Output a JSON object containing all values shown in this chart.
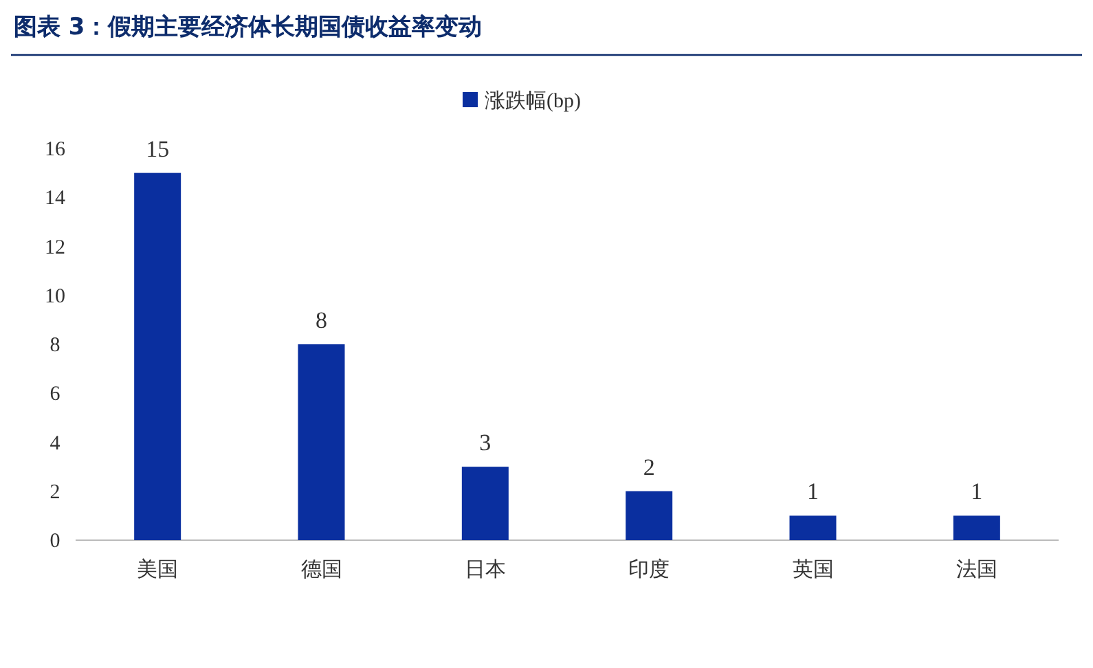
{
  "chart_data": {
    "type": "bar",
    "title": "图表 3：假期主要经济体长期国债收益率变动",
    "categories": [
      "美国",
      "德国",
      "日本",
      "印度",
      "英国",
      "法国"
    ],
    "series": [
      {
        "name": "涨跌幅(bp)",
        "color": "#0a2f9f",
        "values": [
          15,
          8,
          3,
          2,
          1,
          1
        ]
      }
    ],
    "ylim": [
      0,
      16
    ],
    "yticks": [
      0,
      2,
      4,
      6,
      8,
      10,
      12,
      14,
      16
    ],
    "data_labels": true,
    "legend": "top",
    "grid": false
  }
}
